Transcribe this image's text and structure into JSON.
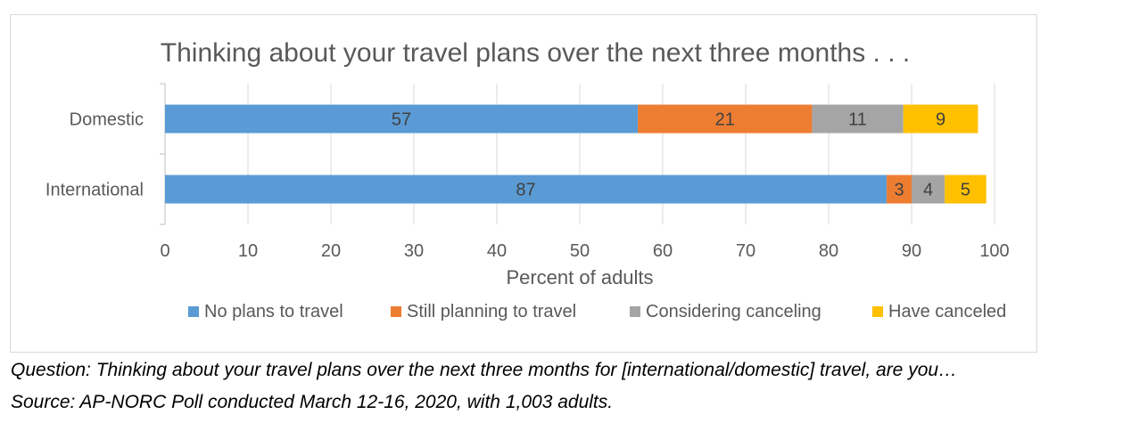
{
  "chart_data": {
    "type": "bar",
    "orientation": "horizontal",
    "stacked": true,
    "title": "Thinking about your travel plans over the next three months . . .",
    "xlabel": "Percent of adults",
    "ylabel": "",
    "categories": [
      "Domestic",
      "International"
    ],
    "series": [
      {
        "name": "No plans to travel",
        "color": "#5b9bd5",
        "values": [
          57,
          87
        ]
      },
      {
        "name": "Still planning to travel",
        "color": "#ed7d31",
        "values": [
          21,
          3
        ]
      },
      {
        "name": "Considering canceling",
        "color": "#a5a5a5",
        "values": [
          11,
          4
        ]
      },
      {
        "name": "Have canceled",
        "color": "#ffc000",
        "values": [
          9,
          5
        ]
      }
    ],
    "xlim": [
      0,
      100
    ],
    "xticks": [
      0,
      10,
      20,
      30,
      40,
      50,
      60,
      70,
      80,
      90,
      100
    ],
    "grid": true,
    "legend_position": "bottom"
  },
  "notes": {
    "question": "Question: Thinking about your travel plans over the next three months for [international/domestic] travel, are you…",
    "source": "Source: AP-NORC Poll conducted March 12-16, 2020, with 1,003 adults."
  }
}
